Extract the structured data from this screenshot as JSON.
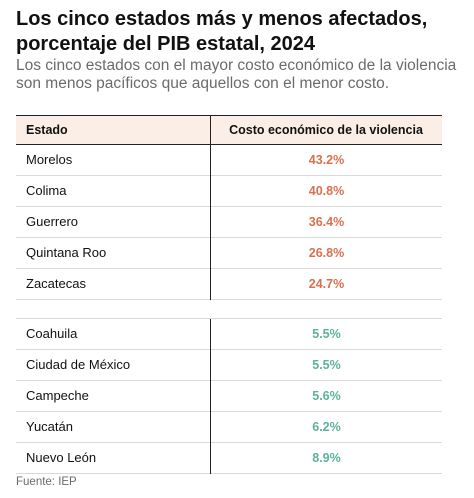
{
  "title": "Los cinco estados más y menos afectados, porcentaje del PIB estatal, 2024",
  "subtitle": "Los cinco estados con el mayor costo económico de la violencia son menos pacíficos que aquellos con el menor costo.",
  "source": "Fuente: IEP",
  "colors": {
    "high": "#d9714e",
    "low": "#5bb39a",
    "header_bg": "#fbeee6"
  },
  "chart_data": {
    "type": "table",
    "columns": [
      "Estado",
      "Costo económico de la violencia"
    ],
    "groups": [
      {
        "rows": [
          {
            "state": "Morelos",
            "value": 43.2,
            "label": "43.2%"
          },
          {
            "state": "Colima",
            "value": 40.8,
            "label": "40.8%"
          },
          {
            "state": "Guerrero",
            "value": 36.4,
            "label": "36.4%"
          },
          {
            "state": "Quintana Roo",
            "value": 26.8,
            "label": "26.8%"
          },
          {
            "state": "Zacatecas",
            "value": 24.7,
            "label": "24.7%"
          }
        ]
      },
      {
        "rows": [
          {
            "state": "Coahuila",
            "value": 5.5,
            "label": "5.5%"
          },
          {
            "state": "Ciudad de México",
            "value": 5.5,
            "label": "5.5%"
          },
          {
            "state": "Campeche",
            "value": 5.6,
            "label": "5.6%"
          },
          {
            "state": "Yucatán",
            "value": 6.2,
            "label": "6.2%"
          },
          {
            "state": "Nuevo León",
            "value": 8.9,
            "label": "8.9%"
          }
        ]
      }
    ]
  }
}
